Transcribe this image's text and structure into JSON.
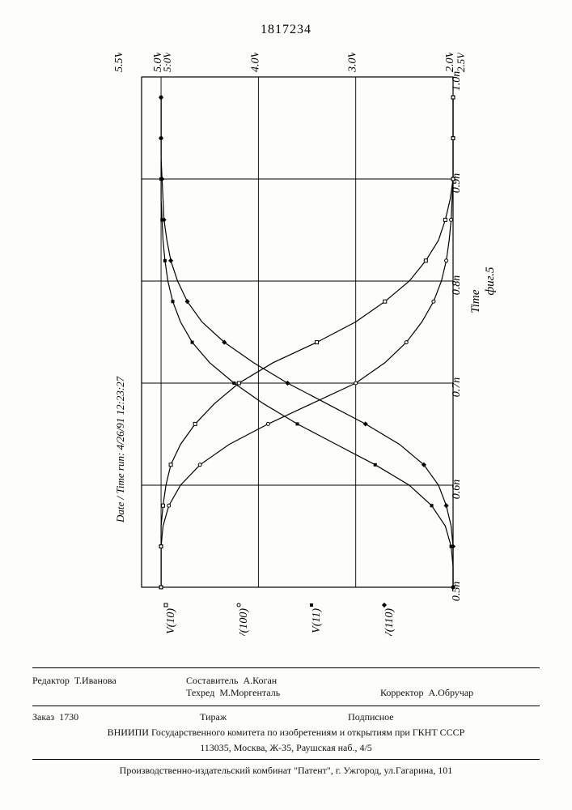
{
  "document_number": "1817234",
  "chart": {
    "type": "line",
    "orientation_note": "rotated 90deg CCW in print; x-axis (Time) runs vertically upward, y-axis (Voltage) runs horizontally leftward",
    "x_axis": {
      "label": "Time",
      "ticks": [
        "0.5n",
        "0.6n",
        "0.7n",
        "0.8n",
        "0.9n",
        "1.0n"
      ],
      "min": 0.5,
      "max": 1.0
    },
    "y_axis": {
      "ticks": [
        "5.5V",
        "5.0V",
        "5.0V",
        "4.0V",
        "3.0V",
        "2.0V",
        "2.5V"
      ],
      "min": 2.0,
      "max": 5.5
    },
    "figure_label": "фиг.5",
    "date_time_label": "Date / Time run:  4/26/91  12:23:27",
    "legend": [
      {
        "marker": "square-open",
        "label": "V(10)",
        "color": "#000000"
      },
      {
        "marker": "circle-open",
        "label": "V(100)",
        "color": "#000000"
      },
      {
        "marker": "square-filled",
        "label": "V(11)",
        "color": "#000000"
      },
      {
        "marker": "diamond-filled",
        "label": "V(110)",
        "color": "#000000"
      }
    ],
    "series": {
      "V10": {
        "marker": "square-open",
        "points": [
          [
            0.5,
            5.0
          ],
          [
            0.52,
            5.0
          ],
          [
            0.54,
            5.0
          ],
          [
            0.56,
            5.0
          ],
          [
            0.58,
            4.98
          ],
          [
            0.6,
            4.95
          ],
          [
            0.62,
            4.9
          ],
          [
            0.64,
            4.8
          ],
          [
            0.66,
            4.65
          ],
          [
            0.68,
            4.45
          ],
          [
            0.7,
            4.2
          ],
          [
            0.72,
            3.85
          ],
          [
            0.74,
            3.4
          ],
          [
            0.76,
            3.0
          ],
          [
            0.78,
            2.7
          ],
          [
            0.8,
            2.45
          ],
          [
            0.82,
            2.28
          ],
          [
            0.84,
            2.15
          ],
          [
            0.86,
            2.08
          ],
          [
            0.88,
            2.03
          ],
          [
            0.9,
            2.0
          ],
          [
            0.92,
            2.0
          ],
          [
            0.94,
            2.0
          ],
          [
            0.96,
            2.0
          ],
          [
            0.98,
            2.0
          ]
        ]
      },
      "V100": {
        "marker": "circle-open",
        "points": [
          [
            0.5,
            5.0
          ],
          [
            0.52,
            5.0
          ],
          [
            0.54,
            5.0
          ],
          [
            0.56,
            4.98
          ],
          [
            0.58,
            4.92
          ],
          [
            0.6,
            4.8
          ],
          [
            0.62,
            4.6
          ],
          [
            0.64,
            4.3
          ],
          [
            0.66,
            3.9
          ],
          [
            0.68,
            3.45
          ],
          [
            0.7,
            3.0
          ],
          [
            0.72,
            2.7
          ],
          [
            0.74,
            2.48
          ],
          [
            0.76,
            2.32
          ],
          [
            0.78,
            2.2
          ],
          [
            0.8,
            2.12
          ],
          [
            0.82,
            2.07
          ],
          [
            0.84,
            2.04
          ],
          [
            0.86,
            2.02
          ],
          [
            0.88,
            2.01
          ],
          [
            0.9,
            2.0
          ],
          [
            0.92,
            2.0
          ],
          [
            0.94,
            2.0
          ],
          [
            0.96,
            2.0
          ],
          [
            0.98,
            2.0
          ]
        ]
      },
      "V11": {
        "marker": "square-filled",
        "points": [
          [
            0.5,
            2.0
          ],
          [
            0.52,
            2.0
          ],
          [
            0.54,
            2.02
          ],
          [
            0.56,
            2.08
          ],
          [
            0.58,
            2.22
          ],
          [
            0.6,
            2.45
          ],
          [
            0.62,
            2.8
          ],
          [
            0.64,
            3.2
          ],
          [
            0.66,
            3.6
          ],
          [
            0.68,
            3.95
          ],
          [
            0.7,
            4.25
          ],
          [
            0.72,
            4.5
          ],
          [
            0.74,
            4.68
          ],
          [
            0.76,
            4.8
          ],
          [
            0.78,
            4.88
          ],
          [
            0.8,
            4.93
          ],
          [
            0.82,
            4.96
          ],
          [
            0.84,
            4.98
          ],
          [
            0.86,
            4.99
          ],
          [
            0.88,
            5.0
          ],
          [
            0.9,
            5.0
          ],
          [
            0.92,
            5.0
          ],
          [
            0.94,
            5.0
          ],
          [
            0.96,
            5.0
          ],
          [
            0.98,
            5.0
          ]
        ]
      },
      "V110": {
        "marker": "diamond-filled",
        "points": [
          [
            0.5,
            2.0
          ],
          [
            0.52,
            2.0
          ],
          [
            0.54,
            2.0
          ],
          [
            0.56,
            2.02
          ],
          [
            0.58,
            2.07
          ],
          [
            0.6,
            2.15
          ],
          [
            0.62,
            2.3
          ],
          [
            0.64,
            2.55
          ],
          [
            0.66,
            2.9
          ],
          [
            0.68,
            3.3
          ],
          [
            0.7,
            3.7
          ],
          [
            0.72,
            4.05
          ],
          [
            0.74,
            4.35
          ],
          [
            0.76,
            4.58
          ],
          [
            0.78,
            4.73
          ],
          [
            0.8,
            4.83
          ],
          [
            0.82,
            4.9
          ],
          [
            0.84,
            4.94
          ],
          [
            0.86,
            4.97
          ],
          [
            0.88,
            4.98
          ],
          [
            0.9,
            4.99
          ],
          [
            0.92,
            5.0
          ],
          [
            0.94,
            5.0
          ],
          [
            0.96,
            5.0
          ],
          [
            0.98,
            5.0
          ]
        ]
      }
    },
    "line_color": "#000000",
    "grid_color": "#000000",
    "background": "#fdfdfb",
    "line_width": 1.2,
    "marker_size": 4,
    "tick_fontsize": 14,
    "label_fontsize": 15
  },
  "footer": {
    "editor_label": "Редактор",
    "editor_name": "Т.Иванова",
    "compiler_label": "Составитель",
    "compiler_name": "А.Коган",
    "techred_label": "Техред",
    "techred_name": "М.Моргенталь",
    "corrector_label": "Корректор",
    "corrector_name": "А.Обручар",
    "order_label": "Заказ",
    "order_no": "1730",
    "tirazh_label": "Тираж",
    "podpisnoe": "Подписное",
    "vniipi_line1": "ВНИИПИ Государственного комитета по изобретениям и открытиям при ГКНТ СССР",
    "vniipi_line2": "113035, Москва, Ж-35, Раушская наб., 4/5",
    "prod_line": "Производственно-издательский комбинат \"Патент\", г. Ужгород, ул.Гагарина, 101"
  }
}
